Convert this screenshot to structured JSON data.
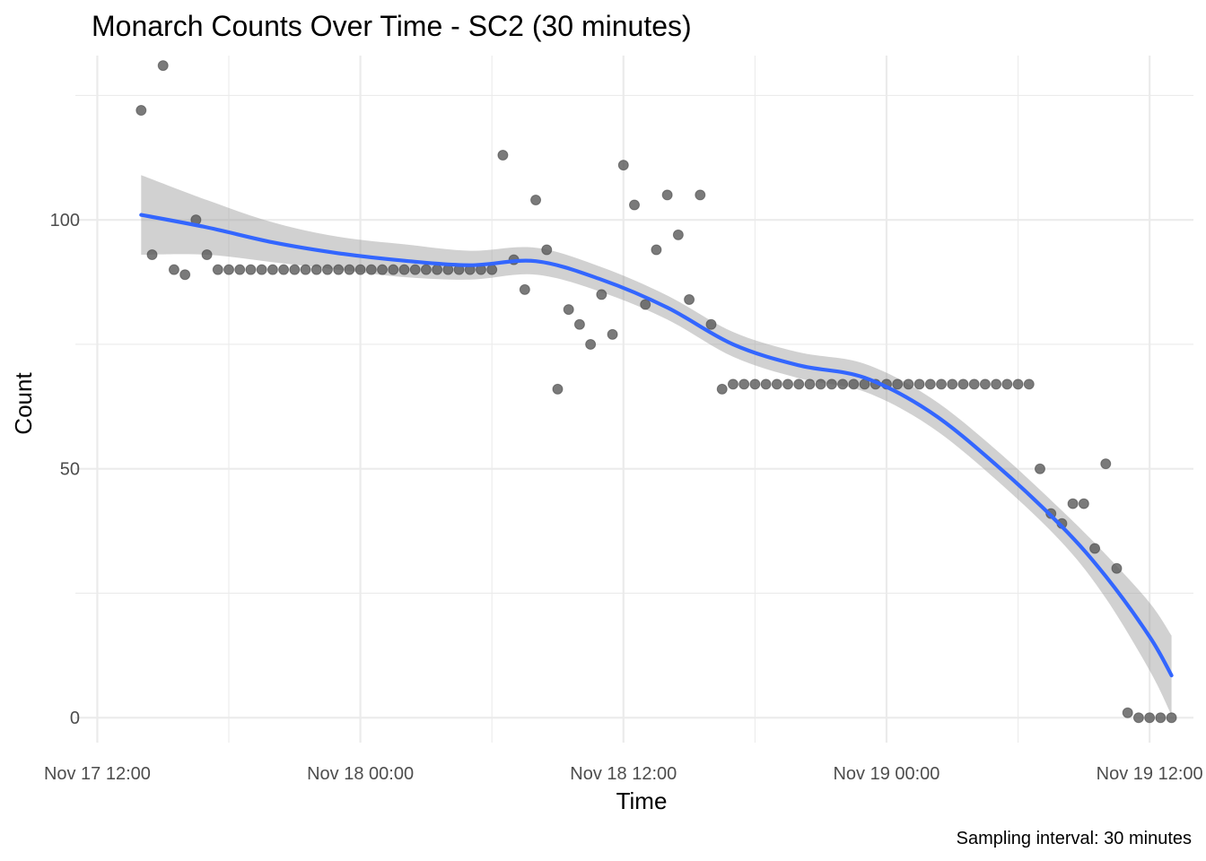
{
  "chart_data": {
    "type": "scatter",
    "title": "Monarch Counts Over Time - SC2 (30 minutes)",
    "xlabel": "Time",
    "ylabel": "Count",
    "caption": "Sampling interval: 30 minutes",
    "x_unit": "datetime",
    "xlim": [
      "2023-11-17T11:00",
      "2023-11-19T14:00"
    ],
    "ylim": [
      -5,
      133
    ],
    "grid": true,
    "x_ticks": [
      {
        "value": "2023-11-17T12:00",
        "label": "Nov 17 12:00"
      },
      {
        "value": "2023-11-18T00:00",
        "label": "Nov 18 00:00"
      },
      {
        "value": "2023-11-18T12:00",
        "label": "Nov 18 12:00"
      },
      {
        "value": "2023-11-19T00:00",
        "label": "Nov 19 00:00"
      },
      {
        "value": "2023-11-19T12:00",
        "label": "Nov 19 12:00"
      }
    ],
    "y_ticks": [
      {
        "value": 0,
        "label": "0"
      },
      {
        "value": 50,
        "label": "50"
      },
      {
        "value": 100,
        "label": "100"
      }
    ],
    "colors": {
      "points": "#595959",
      "smooth_line": "#3366ff",
      "confidence_band": "#999999",
      "grid": "#ebebeb"
    },
    "series": [
      {
        "kind": "points",
        "x": [
          "2023-11-17T14:00",
          "2023-11-17T14:30",
          "2023-11-17T15:00",
          "2023-11-17T15:30",
          "2023-11-17T16:00",
          "2023-11-17T16:30",
          "2023-11-17T17:00",
          "2023-11-17T17:30",
          "2023-11-17T18:00",
          "2023-11-17T18:30",
          "2023-11-17T19:00",
          "2023-11-17T19:30",
          "2023-11-17T20:00",
          "2023-11-17T20:30",
          "2023-11-17T21:00",
          "2023-11-17T21:30",
          "2023-11-17T22:00",
          "2023-11-17T22:30",
          "2023-11-17T23:00",
          "2023-11-17T23:30",
          "2023-11-18T00:00",
          "2023-11-18T00:30",
          "2023-11-18T01:00",
          "2023-11-18T01:30",
          "2023-11-18T02:00",
          "2023-11-18T02:30",
          "2023-11-18T03:00",
          "2023-11-18T03:30",
          "2023-11-18T04:00",
          "2023-11-18T04:30",
          "2023-11-18T05:00",
          "2023-11-18T05:30",
          "2023-11-18T06:00",
          "2023-11-18T06:30",
          "2023-11-18T07:00",
          "2023-11-18T07:30",
          "2023-11-18T08:00",
          "2023-11-18T08:30",
          "2023-11-18T09:00",
          "2023-11-18T09:30",
          "2023-11-18T10:00",
          "2023-11-18T10:30",
          "2023-11-18T11:00",
          "2023-11-18T11:30",
          "2023-11-18T12:00",
          "2023-11-18T12:30",
          "2023-11-18T13:00",
          "2023-11-18T13:30",
          "2023-11-18T14:00",
          "2023-11-18T14:30",
          "2023-11-18T15:00",
          "2023-11-18T15:30",
          "2023-11-18T16:00",
          "2023-11-18T16:30",
          "2023-11-18T17:00",
          "2023-11-18T17:30",
          "2023-11-18T18:00",
          "2023-11-18T18:30",
          "2023-11-18T19:00",
          "2023-11-18T19:30",
          "2023-11-18T20:00",
          "2023-11-18T20:30",
          "2023-11-18T21:00",
          "2023-11-18T21:30",
          "2023-11-18T22:00",
          "2023-11-18T22:30",
          "2023-11-18T23:00",
          "2023-11-18T23:30",
          "2023-11-19T00:00",
          "2023-11-19T00:30",
          "2023-11-19T01:00",
          "2023-11-19T01:30",
          "2023-11-19T02:00",
          "2023-11-19T02:30",
          "2023-11-19T03:00",
          "2023-11-19T03:30",
          "2023-11-19T04:00",
          "2023-11-19T04:30",
          "2023-11-19T05:00",
          "2023-11-19T05:30",
          "2023-11-19T06:00",
          "2023-11-19T06:30",
          "2023-11-19T07:00",
          "2023-11-19T07:30",
          "2023-11-19T08:00",
          "2023-11-19T08:30",
          "2023-11-19T09:00",
          "2023-11-19T09:30",
          "2023-11-19T10:00",
          "2023-11-19T10:30",
          "2023-11-19T11:00",
          "2023-11-19T11:30",
          "2023-11-19T12:00",
          "2023-11-19T12:30",
          "2023-11-19T13:00"
        ],
        "y": [
          122,
          93,
          131,
          90,
          89,
          100,
          93,
          90,
          90,
          90,
          90,
          90,
          90,
          90,
          90,
          90,
          90,
          90,
          90,
          90,
          90,
          90,
          90,
          90,
          90,
          90,
          90,
          90,
          90,
          90,
          90,
          90,
          90,
          113,
          92,
          86,
          104,
          94,
          66,
          82,
          79,
          75,
          85,
          77,
          111,
          103,
          83,
          94,
          105,
          97,
          84,
          105,
          79,
          66,
          67,
          67,
          67,
          67,
          67,
          67,
          67,
          67,
          67,
          67,
          67,
          67,
          67,
          67,
          67,
          67,
          67,
          67,
          67,
          67,
          67,
          67,
          67,
          67,
          67,
          67,
          67,
          67,
          50,
          41,
          39,
          43,
          43,
          34,
          51,
          30,
          1,
          0,
          0,
          0,
          0
        ]
      },
      {
        "kind": "smooth",
        "x": [
          "2023-11-17T14:00",
          "2023-11-17T17:00",
          "2023-11-17T20:00",
          "2023-11-17T23:00",
          "2023-11-18T02:00",
          "2023-11-18T05:00",
          "2023-11-18T08:00",
          "2023-11-18T11:00",
          "2023-11-18T14:00",
          "2023-11-18T17:00",
          "2023-11-18T20:00",
          "2023-11-18T23:00",
          "2023-11-19T02:00",
          "2023-11-19T05:00",
          "2023-11-19T08:00",
          "2023-11-19T10:00",
          "2023-11-19T12:00",
          "2023-11-19T13:00"
        ],
        "y": [
          101,
          98.5,
          95.5,
          93.3,
          91.8,
          90.9,
          91.7,
          88,
          82.4,
          75,
          70.8,
          68.3,
          61.4,
          50.8,
          38.4,
          28.4,
          16.3,
          8.5
        ],
        "ci_low": [
          93,
          93,
          91.5,
          90,
          88.5,
          88,
          89,
          85.5,
          80,
          72.5,
          68.2,
          65.5,
          58.5,
          47.8,
          35.2,
          24,
          9.5,
          0.5
        ],
        "ci_high": [
          109,
          104,
          99.5,
          96.6,
          95.1,
          93.8,
          94.4,
          90.5,
          84.8,
          77.5,
          73.4,
          71.1,
          64.3,
          53.8,
          41.6,
          32.8,
          23.1,
          16.5
        ]
      }
    ]
  }
}
